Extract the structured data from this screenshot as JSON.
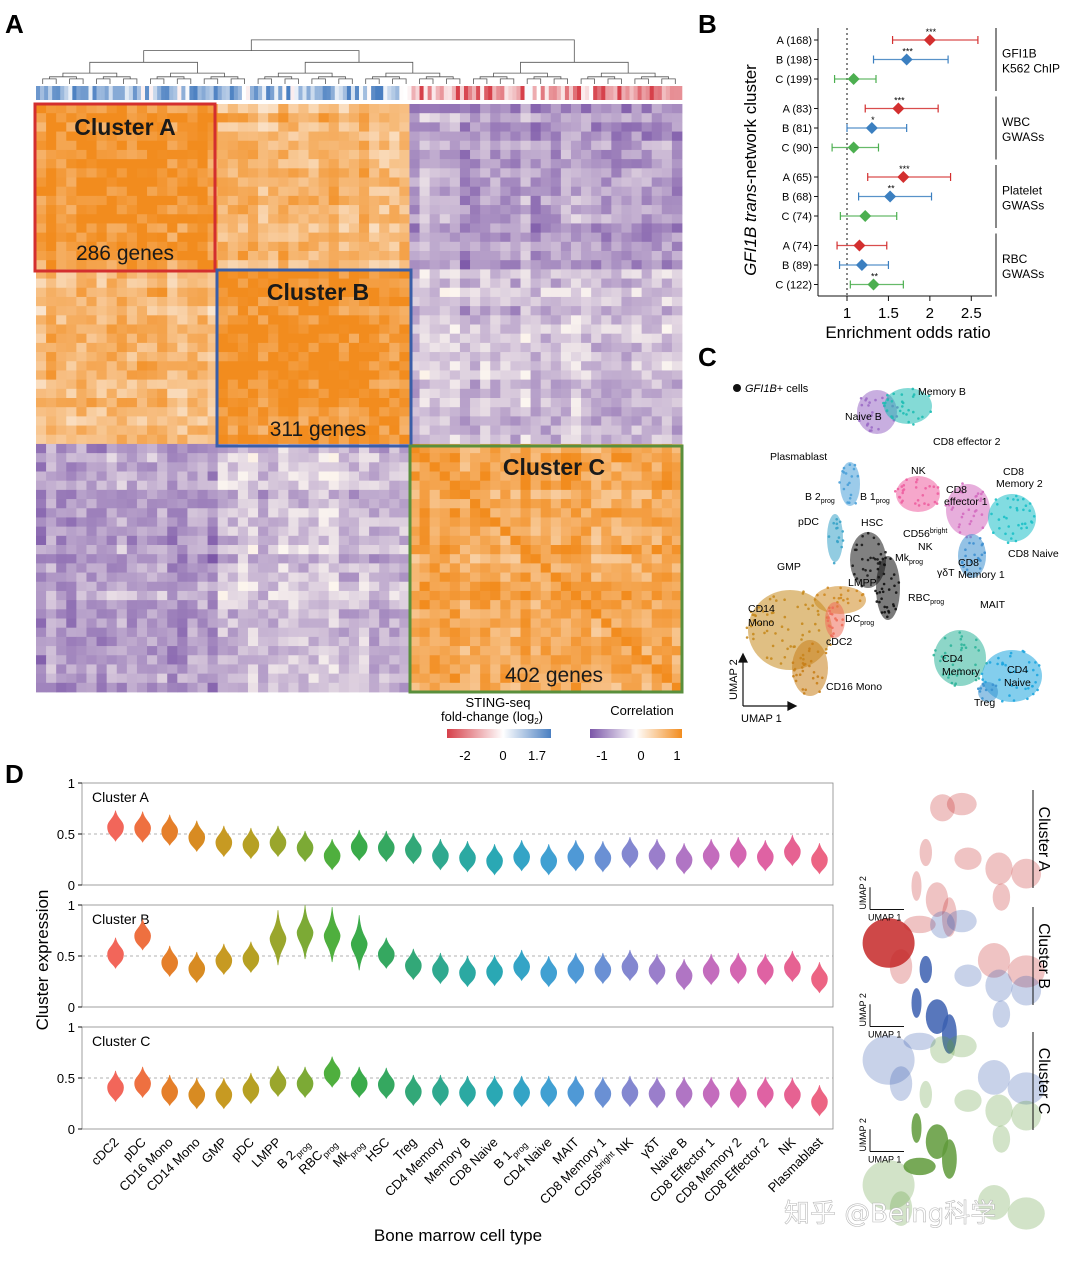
{
  "panels": {
    "a": "A",
    "b": "B",
    "c": "C",
    "d": "D"
  },
  "chart_data": [
    {
      "type": "heatmap",
      "panel": "A",
      "title": "",
      "clusters": [
        {
          "name": "Cluster A",
          "genes_label": "286 genes",
          "n_genes": 286,
          "color": "#d32f2f"
        },
        {
          "name": "Cluster B",
          "genes_label": "311 genes",
          "n_genes": 311,
          "color": "#3a5ea8"
        },
        {
          "name": "Cluster C",
          "genes_label": "402 genes",
          "n_genes": 402,
          "color": "#5a8f3c"
        }
      ],
      "legend_sting": {
        "title_line1": "STING-seq",
        "title_line2": "fold-change (log",
        "title_sub": "2",
        "title_end": ")",
        "ticks": [
          "-2",
          "0",
          "1.7"
        ],
        "colors": [
          "#d6404a",
          "#ffffff",
          "#4a7fc1"
        ]
      },
      "legend_corr": {
        "title": "Correlation",
        "ticks": [
          "-1",
          "0",
          "1"
        ],
        "colors": [
          "#7b56a8",
          "#ffffff",
          "#f28c1e"
        ]
      }
    },
    {
      "type": "scatter",
      "panel": "B",
      "ylabel_italic": "GFI1B trans",
      "ylabel_rest": "-network cluster",
      "xlabel": "Enrichment odds ratio",
      "xlim": [
        0.65,
        2.75
      ],
      "xticks": [
        "1",
        "1.5",
        "2",
        "2.5"
      ],
      "xtick_values": [
        1,
        1.5,
        2,
        2.5
      ],
      "groups": [
        {
          "name_line1": "GFI1B",
          "name_line2": "K562 ChIP",
          "rows": [
            {
              "label": "A (168)",
              "or": 2.0,
              "lo": 1.55,
              "hi": 2.58,
              "sig": "***",
              "color": "#d32f2f"
            },
            {
              "label": "B (198)",
              "or": 1.72,
              "lo": 1.32,
              "hi": 2.22,
              "sig": "***",
              "color": "#3b7fc0"
            },
            {
              "label": "C (199)",
              "or": 1.08,
              "lo": 0.85,
              "hi": 1.35,
              "sig": "",
              "color": "#4caf50"
            }
          ]
        },
        {
          "name_line1": "WBC",
          "name_line2": "GWASs",
          "rows": [
            {
              "label": "A (83)",
              "or": 1.62,
              "lo": 1.22,
              "hi": 2.1,
              "sig": "***",
              "color": "#d32f2f"
            },
            {
              "label": "B (81)",
              "or": 1.3,
              "lo": 1.0,
              "hi": 1.72,
              "sig": "*",
              "color": "#3b7fc0"
            },
            {
              "label": "C (90)",
              "or": 1.08,
              "lo": 0.82,
              "hi": 1.38,
              "sig": "",
              "color": "#4caf50"
            }
          ]
        },
        {
          "name_line1": "Platelet",
          "name_line2": "GWASs",
          "rows": [
            {
              "label": "A (65)",
              "or": 1.68,
              "lo": 1.25,
              "hi": 2.25,
              "sig": "***",
              "color": "#d32f2f"
            },
            {
              "label": "B (68)",
              "or": 1.52,
              "lo": 1.14,
              "hi": 2.02,
              "sig": "**",
              "color": "#3b7fc0"
            },
            {
              "label": "C (74)",
              "or": 1.22,
              "lo": 0.92,
              "hi": 1.6,
              "sig": "",
              "color": "#4caf50"
            }
          ]
        },
        {
          "name_line1": "RBC",
          "name_line2": "GWASs",
          "rows": [
            {
              "label": "A (74)",
              "or": 1.15,
              "lo": 0.88,
              "hi": 1.48,
              "sig": "",
              "color": "#d32f2f"
            },
            {
              "label": "B (89)",
              "or": 1.18,
              "lo": 0.91,
              "hi": 1.5,
              "sig": "",
              "color": "#3b7fc0"
            },
            {
              "label": "C (122)",
              "or": 1.32,
              "lo": 1.04,
              "hi": 1.68,
              "sig": "**",
              "color": "#4caf50"
            }
          ]
        }
      ]
    },
    {
      "type": "scatter",
      "panel": "C",
      "subtype": "UMAP",
      "legend_italic": "GFI1B",
      "legend_rest": "+ cells",
      "xlabel": "UMAP 1",
      "ylabel": "UMAP 2",
      "labels": [
        {
          "text": "Memory B"
        },
        {
          "text": "Naive B"
        },
        {
          "text": "Plasmablast"
        },
        {
          "text": "CD8 effector 2"
        },
        {
          "text": "NK"
        },
        {
          "text": "CD8"
        },
        {
          "text": "Memory 2"
        },
        {
          "text": "CD8"
        },
        {
          "text": "effector 1"
        },
        {
          "text": "B 2",
          "sub": "prog"
        },
        {
          "text": "B 1",
          "sub": "prog"
        },
        {
          "text": "pDC"
        },
        {
          "text": "HSC"
        },
        {
          "text": "CD56",
          "sup": "bright"
        },
        {
          "text": "NK"
        },
        {
          "text": "CD8 Naive"
        },
        {
          "text": "CD8"
        },
        {
          "text": "Memory 1"
        },
        {
          "text": "Mk",
          "sub": "prog"
        },
        {
          "text": "GMP"
        },
        {
          "text": "γδT"
        },
        {
          "text": "LMPP"
        },
        {
          "text": "RBC",
          "sub": "prog"
        },
        {
          "text": "MAIT"
        },
        {
          "text": "DC",
          "sub": "prog"
        },
        {
          "text": "CD14"
        },
        {
          "text": "Mono"
        },
        {
          "text": "cDC2"
        },
        {
          "text": "CD4"
        },
        {
          "text": "Memory"
        },
        {
          "text": "CD4"
        },
        {
          "text": "Naive"
        },
        {
          "text": "Treg"
        },
        {
          "text": "CD16 Mono"
        }
      ]
    },
    {
      "type": "violin",
      "panel": "D",
      "ylabel": "Cluster expression",
      "xlabel": "Bone marrow cell type",
      "ylim": [
        0,
        1
      ],
      "yticks": [
        "0",
        "0.5",
        "1"
      ],
      "reference_line": 0.5,
      "categories": [
        {
          "label": "cDC2"
        },
        {
          "label": "pDC"
        },
        {
          "label": "CD16 Mono"
        },
        {
          "label": "CD14 Mono"
        },
        {
          "label": "GMP"
        },
        {
          "label": "pDC"
        },
        {
          "label": "LMPP"
        },
        {
          "label": "B 2",
          "sub": "prog"
        },
        {
          "label": "RBC",
          "sub": "prog"
        },
        {
          "label": "Mk",
          "sub": "prog"
        },
        {
          "label": "HSC"
        },
        {
          "label": "Treg"
        },
        {
          "label": "CD4 Memory"
        },
        {
          "label": "Memory B"
        },
        {
          "label": "CD8 Naive"
        },
        {
          "label": "B 1",
          "sub": "prog"
        },
        {
          "label": "CD4 Naive"
        },
        {
          "label": "MAIT"
        },
        {
          "label": "CD8 Memory 1"
        },
        {
          "label": "CD56",
          "sup": "bright",
          "rest": " NK"
        },
        {
          "label": "γδT"
        },
        {
          "label": "Naive B"
        },
        {
          "label": "CD8 Effector 1"
        },
        {
          "label": "CD8 Memory 2"
        },
        {
          "label": "CD8 Effector 2"
        },
        {
          "label": "NK"
        },
        {
          "label": "Plasmablast"
        }
      ],
      "colors": [
        "#f2665a",
        "#ee7040",
        "#e57f2a",
        "#d88b22",
        "#c79a22",
        "#b6a023",
        "#9aa62c",
        "#7caa35",
        "#4faf3e",
        "#3aab4a",
        "#35a860",
        "#32a878",
        "#2fa98f",
        "#2ba9a2",
        "#2aa8b4",
        "#34a4c6",
        "#40a0d2",
        "#4f99d6",
        "#6a90d4",
        "#8387d0",
        "#9a7ecb",
        "#b075c4",
        "#c36cbd",
        "#d466b1",
        "#df62a3",
        "#e66292",
        "#ec6483"
      ],
      "series": [
        {
          "name": "Cluster A",
          "values": [
            0.57,
            0.56,
            0.53,
            0.47,
            0.42,
            0.4,
            0.42,
            0.37,
            0.29,
            0.38,
            0.37,
            0.35,
            0.29,
            0.27,
            0.24,
            0.28,
            0.24,
            0.28,
            0.27,
            0.31,
            0.29,
            0.25,
            0.29,
            0.31,
            0.28,
            0.33,
            0.25
          ]
        },
        {
          "name": "Cluster B",
          "values": [
            0.52,
            0.7,
            0.44,
            0.38,
            0.46,
            0.48,
            0.67,
            0.73,
            0.7,
            0.62,
            0.52,
            0.41,
            0.37,
            0.34,
            0.35,
            0.4,
            0.34,
            0.37,
            0.37,
            0.4,
            0.36,
            0.31,
            0.36,
            0.37,
            0.36,
            0.39,
            0.28
          ]
        },
        {
          "name": "Cluster C",
          "values": [
            0.41,
            0.45,
            0.37,
            0.34,
            0.34,
            0.39,
            0.46,
            0.45,
            0.55,
            0.45,
            0.44,
            0.37,
            0.37,
            0.36,
            0.36,
            0.36,
            0.36,
            0.36,
            0.35,
            0.36,
            0.35,
            0.35,
            0.35,
            0.35,
            0.35,
            0.34,
            0.27
          ]
        }
      ],
      "mini_umaps": [
        {
          "title": "Cluster A",
          "color": "#c62828",
          "xlabel": "UMAP 1",
          "ylabel": "UMAP 2"
        },
        {
          "title": "Cluster B",
          "color": "#3b5fb0",
          "xlabel": "UMAP 1",
          "ylabel": "UMAP 2"
        },
        {
          "title": "Cluster C",
          "color": "#5f9a3a",
          "xlabel": "UMAP 1",
          "ylabel": "UMAP 2"
        }
      ]
    }
  ],
  "watermark": "知乎 @Being科学"
}
